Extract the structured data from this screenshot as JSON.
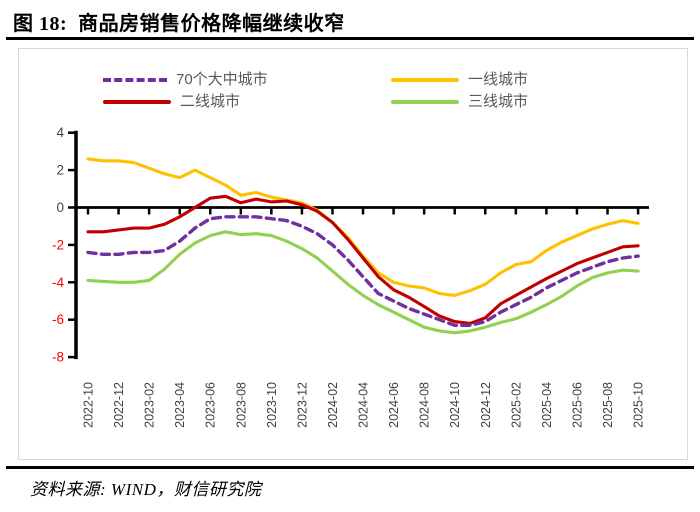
{
  "header": {
    "title": "图 18:  商品房销售价格降幅继续收窄"
  },
  "source": {
    "text": "资料来源: WIND，财信研究院"
  },
  "chart_data": {
    "type": "line",
    "title": "商品房销售价格降幅继续收窄",
    "legend_position": "top",
    "grid": false,
    "ylim": [
      -8,
      4
    ],
    "y_ticks": [
      4,
      2,
      0,
      -2,
      -4,
      -6,
      -8
    ],
    "x_tick_step": 2,
    "x": [
      "2022-10",
      "2022-11",
      "2022-12",
      "2023-01",
      "2023-02",
      "2023-03",
      "2023-04",
      "2023-05",
      "2023-06",
      "2023-07",
      "2023-08",
      "2023-09",
      "2023-10",
      "2023-11",
      "2023-12",
      "2024-01",
      "2024-02",
      "2024-03",
      "2024-04",
      "2024-05",
      "2024-06",
      "2024-07",
      "2024-08",
      "2024-09",
      "2024-10",
      "2024-11",
      "2024-12",
      "2025-01",
      "2025-02",
      "2025-03",
      "2025-04",
      "2025-05",
      "2025-06",
      "2025-07",
      "2025-08",
      "2025-09",
      "2025-10"
    ],
    "x_tick_labels": [
      "2022-10",
      "2022-12",
      "2023-02",
      "2023-04",
      "2023-06",
      "2023-08",
      "2023-10",
      "2023-12",
      "2024-02",
      "2024-04",
      "2024-06",
      "2024-08",
      "2024-10",
      "2024-12",
      "2025-02",
      "2025-04",
      "2025-06",
      "2025-08",
      "2025-10"
    ],
    "series": [
      {
        "name": "70个大中城市",
        "color": "#7030A0",
        "dashed": true,
        "values": [
          -2.4,
          -2.5,
          -2.5,
          -2.4,
          -2.4,
          -2.3,
          -1.8,
          -1.1,
          -0.6,
          -0.5,
          -0.5,
          -0.5,
          -0.6,
          -0.7,
          -1.0,
          -1.4,
          -2.0,
          -2.8,
          -3.7,
          -4.6,
          -5.0,
          -5.4,
          -5.7,
          -6.0,
          -6.3,
          -6.3,
          -6.1,
          -5.6,
          -5.2,
          -4.8,
          -4.3,
          -3.9,
          -3.5,
          -3.2,
          -2.9,
          -2.7,
          -2.6
        ]
      },
      {
        "name": "一线城市",
        "color": "#FFC000",
        "dashed": false,
        "values": [
          2.6,
          2.5,
          2.5,
          2.4,
          2.1,
          1.8,
          1.6,
          2.0,
          1.6,
          1.2,
          0.65,
          0.8,
          0.55,
          0.4,
          0.25,
          -0.15,
          -0.8,
          -1.6,
          -2.6,
          -3.5,
          -4.0,
          -4.2,
          -4.3,
          -4.6,
          -4.7,
          -4.45,
          -4.1,
          -3.5,
          -3.05,
          -2.9,
          -2.3,
          -1.85,
          -1.5,
          -1.15,
          -0.9,
          -0.7,
          -0.85
        ]
      },
      {
        "name": "二线城市",
        "color": "#C00000",
        "dashed": false,
        "values": [
          -1.3,
          -1.3,
          -1.2,
          -1.1,
          -1.1,
          -0.9,
          -0.5,
          0.0,
          0.5,
          0.6,
          0.25,
          0.45,
          0.3,
          0.35,
          0.15,
          -0.2,
          -0.8,
          -1.7,
          -2.7,
          -3.7,
          -4.4,
          -4.8,
          -5.3,
          -5.8,
          -6.1,
          -6.2,
          -5.9,
          -5.15,
          -4.7,
          -4.25,
          -3.8,
          -3.4,
          -3.0,
          -2.7,
          -2.4,
          -2.1,
          -2.05
        ]
      },
      {
        "name": "三线城市",
        "color": "#92D050",
        "dashed": false,
        "values": [
          -3.9,
          -3.95,
          -4.0,
          -4.0,
          -3.9,
          -3.3,
          -2.5,
          -1.9,
          -1.5,
          -1.3,
          -1.45,
          -1.4,
          -1.5,
          -1.8,
          -2.2,
          -2.7,
          -3.4,
          -4.1,
          -4.7,
          -5.2,
          -5.6,
          -6.0,
          -6.4,
          -6.6,
          -6.7,
          -6.6,
          -6.4,
          -6.15,
          -5.95,
          -5.6,
          -5.2,
          -4.75,
          -4.2,
          -3.75,
          -3.5,
          -3.35,
          -3.4
        ]
      }
    ],
    "colors": {
      "axis": "#000000",
      "pos_tick_label": "#444444",
      "neg_tick_label": "#FF0000",
      "x_tick_label": "#3F3F3F",
      "legend_text": "#595959",
      "plot_border": "#D9D9D9"
    }
  }
}
